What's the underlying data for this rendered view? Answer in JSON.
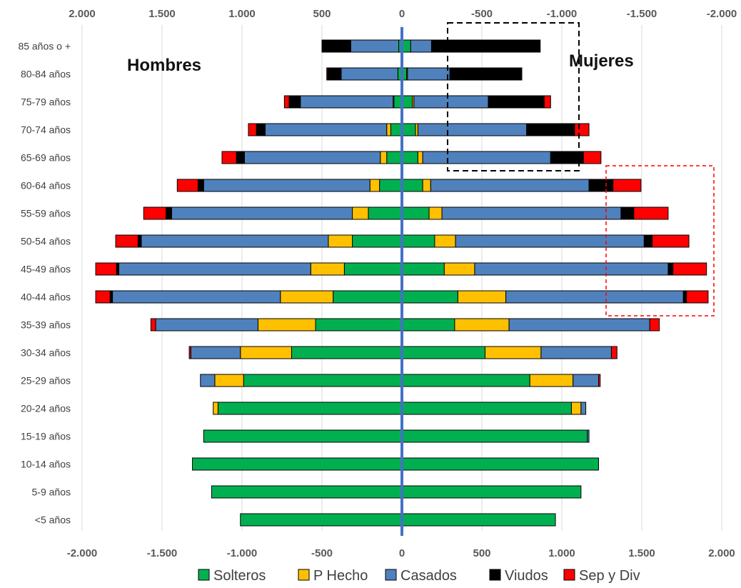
{
  "labels": {
    "men": "Hombres",
    "women": "Mujeres"
  },
  "chart_data": {
    "type": "bar",
    "orientation": "horizontal-diverging",
    "categories": [
      "85 años o +",
      "80-84 años",
      "75-79 años",
      "70-74 años",
      "65-69 años",
      "60-64 años",
      "55-59 años",
      "50-54 años",
      "45-49 años",
      "40-44 años",
      "35-39 años",
      "30-34 años",
      "25-29 años",
      "20-24 años",
      "15-19 años",
      "10-14 años",
      "5-9 años",
      "<5 años"
    ],
    "xlim": [
      -2000,
      2000
    ],
    "top_ticks": [
      "2.000",
      "1.500",
      "1.000",
      "500",
      "0",
      "-500",
      "-1.000",
      "-1.500",
      "-2.000"
    ],
    "bottom_ticks": [
      "-2.000",
      "-1.500",
      "-1.000",
      "-500",
      "0",
      "500",
      "1.000",
      "1.500",
      "2.000"
    ],
    "legend_position": "bottom",
    "grid": true,
    "groups": [
      {
        "name": "Hombres",
        "side": "left",
        "series": [
          {
            "name": "Solteros",
            "color": "#00B050",
            "values": [
              20,
              25,
              50,
              70,
              95,
              140,
              210,
              310,
              360,
              430,
              540,
              690,
              990,
              1150,
              1240,
              1310,
              1190,
              1010
            ]
          },
          {
            "name": "P Hecho",
            "color": "#FFC000",
            "values": [
              0,
              0,
              5,
              25,
              40,
              60,
              100,
              150,
              210,
              330,
              360,
              320,
              180,
              30,
              0,
              0,
              0,
              0
            ]
          },
          {
            "name": "Casados",
            "color": "#4F81BD",
            "values": [
              300,
              355,
              580,
              760,
              850,
              1040,
              1130,
              1170,
              1200,
              1050,
              640,
              310,
              90,
              0,
              0,
              0,
              0,
              0
            ]
          },
          {
            "name": "Viudos",
            "color": "#000000",
            "values": [
              180,
              85,
              70,
              55,
              50,
              35,
              35,
              20,
              15,
              15,
              0,
              0,
              0,
              0,
              0,
              0,
              0,
              0
            ]
          },
          {
            "name": "Sep y Div",
            "color": "#FF0000",
            "values": [
              0,
              5,
              30,
              50,
              90,
              130,
              140,
              140,
              130,
              90,
              30,
              10,
              0,
              0,
              0,
              0,
              0,
              0
            ]
          }
        ]
      },
      {
        "name": "Mujeres",
        "side": "right",
        "series": [
          {
            "name": "Solteros",
            "color": "#00B050",
            "values": [
              55,
              30,
              65,
              85,
              100,
              130,
              170,
              205,
              265,
              350,
              330,
              520,
              800,
              1060,
              1160,
              1230,
              1120,
              960
            ]
          },
          {
            "name": "P Hecho",
            "color": "#FFC000",
            "values": [
              0,
              5,
              10,
              15,
              30,
              50,
              80,
              130,
              190,
              300,
              340,
              350,
              270,
              60,
              0,
              0,
              0,
              0
            ]
          },
          {
            "name": "Casados",
            "color": "#4F81BD",
            "values": [
              130,
              265,
              465,
              680,
              800,
              990,
              1120,
              1180,
              1210,
              1110,
              880,
              440,
              160,
              30,
              10,
              0,
              0,
              0
            ]
          },
          {
            "name": "Viudos",
            "color": "#000000",
            "values": [
              680,
              445,
              350,
              300,
              205,
              150,
              80,
              50,
              30,
              20,
              0,
              0,
              0,
              0,
              0,
              0,
              0,
              0
            ]
          },
          {
            "name": "Sep y Div",
            "color": "#FF0000",
            "values": [
              0,
              5,
              40,
              90,
              110,
              175,
              215,
              230,
              210,
              135,
              60,
              35,
              10,
              0,
              0,
              0,
              0,
              0
            ]
          }
        ]
      }
    ],
    "legend": [
      "Solteros",
      "P Hecho",
      "Casados",
      "Viudos",
      "Sep y Div"
    ]
  }
}
